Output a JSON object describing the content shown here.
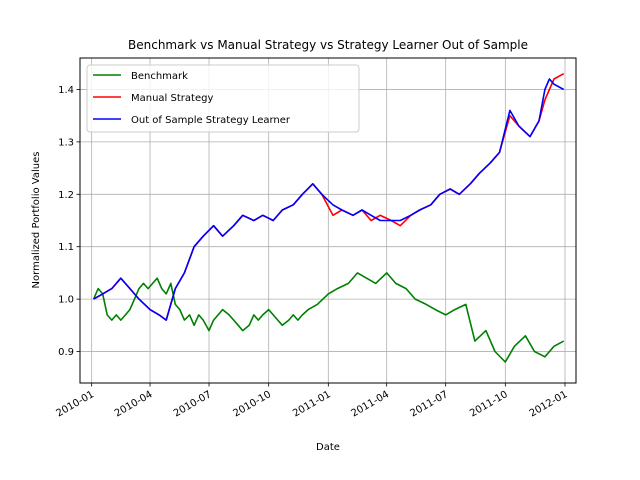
{
  "chart_data": {
    "type": "line",
    "title": "Benchmark vs Manual Strategy vs Strategy Learner Out of Sample",
    "xlabel": "Date",
    "ylabel": "Normalized Portfolio Values",
    "x_type": "date",
    "xlim": [
      "2009-12-14",
      "2012-01-18"
    ],
    "ylim": [
      0.84,
      1.46
    ],
    "x_ticks": [
      "2010-01",
      "2010-04",
      "2010-07",
      "2010-10",
      "2011-01",
      "2011-04",
      "2011-07",
      "2011-10",
      "2012-01"
    ],
    "x_tick_dates": [
      "2010-01-01",
      "2010-04-01",
      "2010-07-01",
      "2010-10-01",
      "2011-01-01",
      "2011-04-01",
      "2011-07-01",
      "2011-10-01",
      "2012-01-01"
    ],
    "y_ticks": [
      0.9,
      1.0,
      1.1,
      1.2,
      1.3,
      1.4
    ],
    "y_tick_labels": [
      "0.9",
      "1.0",
      "1.1",
      "1.2",
      "1.3",
      "1.4"
    ],
    "grid": true,
    "legend_position": "top-left",
    "series": [
      {
        "name": "Benchmark",
        "color": "#008000",
        "points": [
          [
            "2010-01-04",
            1.0
          ],
          [
            "2010-01-11",
            1.02
          ],
          [
            "2010-01-18",
            1.01
          ],
          [
            "2010-01-25",
            0.97
          ],
          [
            "2010-02-01",
            0.96
          ],
          [
            "2010-02-08",
            0.97
          ],
          [
            "2010-02-15",
            0.96
          ],
          [
            "2010-02-22",
            0.97
          ],
          [
            "2010-03-01",
            0.98
          ],
          [
            "2010-03-08",
            1.0
          ],
          [
            "2010-03-15",
            1.02
          ],
          [
            "2010-03-22",
            1.03
          ],
          [
            "2010-03-29",
            1.02
          ],
          [
            "2010-04-05",
            1.03
          ],
          [
            "2010-04-12",
            1.04
          ],
          [
            "2010-04-19",
            1.02
          ],
          [
            "2010-04-26",
            1.01
          ],
          [
            "2010-05-03",
            1.03
          ],
          [
            "2010-05-10",
            0.99
          ],
          [
            "2010-05-17",
            0.98
          ],
          [
            "2010-05-24",
            0.96
          ],
          [
            "2010-06-01",
            0.97
          ],
          [
            "2010-06-08",
            0.95
          ],
          [
            "2010-06-15",
            0.97
          ],
          [
            "2010-06-22",
            0.96
          ],
          [
            "2010-07-01",
            0.94
          ],
          [
            "2010-07-08",
            0.96
          ],
          [
            "2010-07-15",
            0.97
          ],
          [
            "2010-07-22",
            0.98
          ],
          [
            "2010-08-01",
            0.97
          ],
          [
            "2010-08-08",
            0.96
          ],
          [
            "2010-08-15",
            0.95
          ],
          [
            "2010-08-22",
            0.94
          ],
          [
            "2010-09-01",
            0.95
          ],
          [
            "2010-09-08",
            0.97
          ],
          [
            "2010-09-15",
            0.96
          ],
          [
            "2010-09-22",
            0.97
          ],
          [
            "2010-10-01",
            0.98
          ],
          [
            "2010-10-08",
            0.97
          ],
          [
            "2010-10-15",
            0.96
          ],
          [
            "2010-10-22",
            0.95
          ],
          [
            "2010-11-01",
            0.96
          ],
          [
            "2010-11-08",
            0.97
          ],
          [
            "2010-11-15",
            0.96
          ],
          [
            "2010-11-22",
            0.97
          ],
          [
            "2010-12-01",
            0.98
          ],
          [
            "2010-12-15",
            0.99
          ],
          [
            "2011-01-01",
            1.01
          ],
          [
            "2011-01-15",
            1.02
          ],
          [
            "2011-02-01",
            1.03
          ],
          [
            "2011-02-15",
            1.05
          ],
          [
            "2011-03-01",
            1.04
          ],
          [
            "2011-03-15",
            1.03
          ],
          [
            "2011-04-01",
            1.05
          ],
          [
            "2011-04-15",
            1.03
          ],
          [
            "2011-05-01",
            1.02
          ],
          [
            "2011-05-15",
            1.0
          ],
          [
            "2011-06-01",
            0.99
          ],
          [
            "2011-06-15",
            0.98
          ],
          [
            "2011-07-01",
            0.97
          ],
          [
            "2011-07-15",
            0.98
          ],
          [
            "2011-08-01",
            0.99
          ],
          [
            "2011-08-15",
            0.92
          ],
          [
            "2011-09-01",
            0.94
          ],
          [
            "2011-09-15",
            0.9
          ],
          [
            "2011-10-01",
            0.88
          ],
          [
            "2011-10-15",
            0.91
          ],
          [
            "2011-11-01",
            0.93
          ],
          [
            "2011-11-15",
            0.9
          ],
          [
            "2011-12-01",
            0.89
          ],
          [
            "2011-12-15",
            0.91
          ],
          [
            "2011-12-30",
            0.92
          ]
        ]
      },
      {
        "name": "Manual Strategy",
        "color": "#ff0000",
        "points": [
          [
            "2010-01-04",
            1.0
          ],
          [
            "2010-01-18",
            1.01
          ],
          [
            "2010-02-01",
            1.02
          ],
          [
            "2010-02-15",
            1.04
          ],
          [
            "2010-03-01",
            1.02
          ],
          [
            "2010-03-15",
            1.0
          ],
          [
            "2010-04-01",
            0.98
          ],
          [
            "2010-04-15",
            0.97
          ],
          [
            "2010-04-26",
            0.96
          ],
          [
            "2010-05-10",
            1.02
          ],
          [
            "2010-05-24",
            1.05
          ],
          [
            "2010-06-08",
            1.1
          ],
          [
            "2010-06-22",
            1.12
          ],
          [
            "2010-07-08",
            1.14
          ],
          [
            "2010-07-22",
            1.12
          ],
          [
            "2010-08-08",
            1.14
          ],
          [
            "2010-08-22",
            1.16
          ],
          [
            "2010-09-08",
            1.15
          ],
          [
            "2010-09-22",
            1.16
          ],
          [
            "2010-10-08",
            1.15
          ],
          [
            "2010-10-22",
            1.17
          ],
          [
            "2010-11-08",
            1.18
          ],
          [
            "2010-11-22",
            1.2
          ],
          [
            "2010-12-08",
            1.22
          ],
          [
            "2010-12-22",
            1.2
          ],
          [
            "2011-01-08",
            1.16
          ],
          [
            "2011-01-22",
            1.17
          ],
          [
            "2011-02-08",
            1.16
          ],
          [
            "2011-02-22",
            1.17
          ],
          [
            "2011-03-08",
            1.15
          ],
          [
            "2011-03-22",
            1.16
          ],
          [
            "2011-04-08",
            1.15
          ],
          [
            "2011-04-22",
            1.14
          ],
          [
            "2011-05-08",
            1.16
          ],
          [
            "2011-05-22",
            1.17
          ],
          [
            "2011-06-08",
            1.18
          ],
          [
            "2011-06-22",
            1.2
          ],
          [
            "2011-07-08",
            1.21
          ],
          [
            "2011-07-22",
            1.2
          ],
          [
            "2011-08-08",
            1.22
          ],
          [
            "2011-08-22",
            1.24
          ],
          [
            "2011-09-08",
            1.26
          ],
          [
            "2011-09-22",
            1.28
          ],
          [
            "2011-10-08",
            1.35
          ],
          [
            "2011-10-22",
            1.33
          ],
          [
            "2011-11-08",
            1.31
          ],
          [
            "2011-11-22",
            1.34
          ],
          [
            "2011-12-01",
            1.38
          ],
          [
            "2011-12-08",
            1.4
          ],
          [
            "2011-12-15",
            1.42
          ],
          [
            "2011-12-30",
            1.43
          ]
        ]
      },
      {
        "name": "Out of Sample Strategy Learner",
        "color": "#0000ff",
        "points": [
          [
            "2010-01-04",
            1.0
          ],
          [
            "2010-01-18",
            1.01
          ],
          [
            "2010-02-01",
            1.02
          ],
          [
            "2010-02-15",
            1.04
          ],
          [
            "2010-03-01",
            1.02
          ],
          [
            "2010-03-15",
            1.0
          ],
          [
            "2010-04-01",
            0.98
          ],
          [
            "2010-04-15",
            0.97
          ],
          [
            "2010-04-26",
            0.96
          ],
          [
            "2010-05-10",
            1.02
          ],
          [
            "2010-05-24",
            1.05
          ],
          [
            "2010-06-08",
            1.1
          ],
          [
            "2010-06-22",
            1.12
          ],
          [
            "2010-07-08",
            1.14
          ],
          [
            "2010-07-22",
            1.12
          ],
          [
            "2010-08-08",
            1.14
          ],
          [
            "2010-08-22",
            1.16
          ],
          [
            "2010-09-08",
            1.15
          ],
          [
            "2010-09-22",
            1.16
          ],
          [
            "2010-10-08",
            1.15
          ],
          [
            "2010-10-22",
            1.17
          ],
          [
            "2010-11-08",
            1.18
          ],
          [
            "2010-11-22",
            1.2
          ],
          [
            "2010-12-08",
            1.22
          ],
          [
            "2010-12-22",
            1.2
          ],
          [
            "2011-01-08",
            1.18
          ],
          [
            "2011-01-22",
            1.17
          ],
          [
            "2011-02-08",
            1.16
          ],
          [
            "2011-02-22",
            1.17
          ],
          [
            "2011-03-08",
            1.16
          ],
          [
            "2011-03-22",
            1.15
          ],
          [
            "2011-04-08",
            1.15
          ],
          [
            "2011-04-22",
            1.15
          ],
          [
            "2011-05-08",
            1.16
          ],
          [
            "2011-05-22",
            1.17
          ],
          [
            "2011-06-08",
            1.18
          ],
          [
            "2011-06-22",
            1.2
          ],
          [
            "2011-07-08",
            1.21
          ],
          [
            "2011-07-22",
            1.2
          ],
          [
            "2011-08-08",
            1.22
          ],
          [
            "2011-08-22",
            1.24
          ],
          [
            "2011-09-08",
            1.26
          ],
          [
            "2011-09-22",
            1.28
          ],
          [
            "2011-10-08",
            1.36
          ],
          [
            "2011-10-22",
            1.33
          ],
          [
            "2011-11-08",
            1.31
          ],
          [
            "2011-11-22",
            1.34
          ],
          [
            "2011-12-01",
            1.4
          ],
          [
            "2011-12-08",
            1.42
          ],
          [
            "2011-12-15",
            1.41
          ],
          [
            "2011-12-30",
            1.4
          ]
        ]
      }
    ]
  }
}
